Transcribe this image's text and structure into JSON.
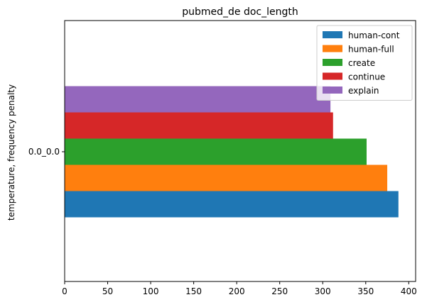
{
  "chart_data": {
    "type": "bar",
    "orientation": "horizontal",
    "title": "pubmed_de doc_length",
    "xlabel": "",
    "ylabel": "temperature, frequency penalty",
    "categories": [
      "0.0_0.0"
    ],
    "series": [
      {
        "name": "human-cont",
        "values": [
          388
        ],
        "color": "#1f77b4"
      },
      {
        "name": "human-full",
        "values": [
          375
        ],
        "color": "#ff7f0e"
      },
      {
        "name": "create",
        "values": [
          351
        ],
        "color": "#2ca02c"
      },
      {
        "name": "continue",
        "values": [
          312
        ],
        "color": "#d62728"
      },
      {
        "name": "explain",
        "values": [
          309
        ],
        "color": "#9467bd"
      }
    ],
    "xlim": [
      0,
      408
    ],
    "xticks": [
      0,
      50,
      100,
      150,
      200,
      250,
      300,
      350,
      400
    ],
    "grid": false,
    "legend_position": "top-right"
  }
}
